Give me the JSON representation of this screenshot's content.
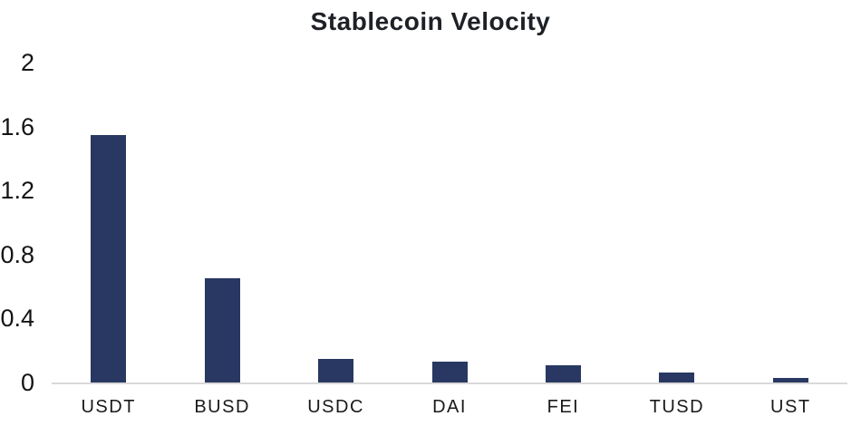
{
  "chart": {
    "title": "Stablecoin Velocity"
  },
  "chart_data": {
    "type": "bar",
    "title": "Stablecoin Velocity",
    "categories": [
      "USDT",
      "BUSD",
      "USDC",
      "DAI",
      "FEI",
      "TUSD",
      "UST"
    ],
    "values": [
      1.55,
      0.65,
      0.15,
      0.13,
      0.11,
      0.06,
      0.03
    ],
    "xlabel": "",
    "ylabel": "",
    "ylim": [
      0,
      2
    ],
    "yticks": [
      0,
      0.4,
      0.8,
      1.2,
      1.6,
      2
    ],
    "grid": false,
    "legend": false,
    "bar_color": "#283862",
    "axis_line_color": "#d9d9d9",
    "title_color": "#1d2025",
    "tick_label_color": "#141414"
  }
}
